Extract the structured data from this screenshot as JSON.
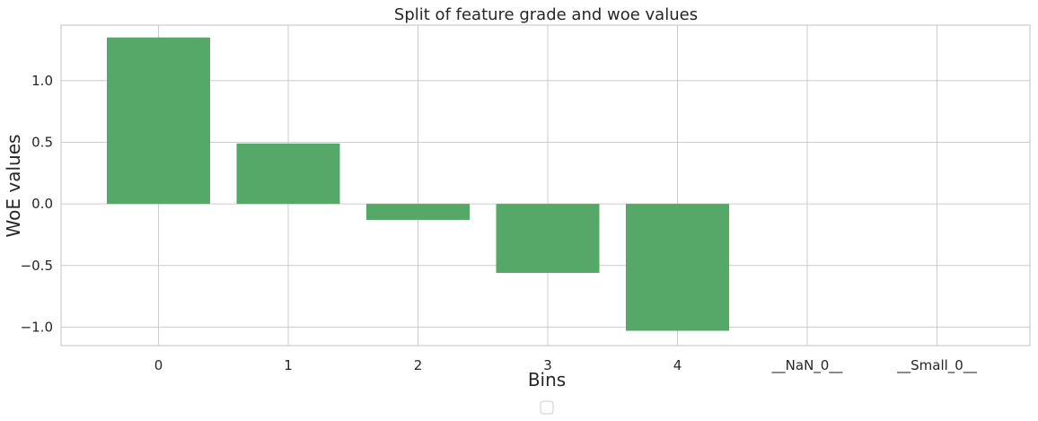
{
  "chart_data": {
    "type": "bar",
    "title": "Split of feature grade and woe values",
    "xlabel": "Bins",
    "ylabel": "WoE values",
    "categories": [
      "0",
      "1",
      "2",
      "3",
      "4",
      "__NaN_0__",
      "__Small_0__"
    ],
    "values": [
      1.35,
      0.49,
      -0.13,
      -0.56,
      -1.03,
      0.0,
      0.0
    ],
    "ylim": [
      -1.15,
      1.45
    ],
    "yticks": [
      1.0,
      0.5,
      0.0,
      -0.5,
      -1.0
    ],
    "ytick_labels": [
      "1.0",
      "0.5",
      "0.0",
      "−0.5",
      "−1.0"
    ],
    "bar_color": "#55a868",
    "grid": true,
    "legend": "bottom-center, empty"
  }
}
